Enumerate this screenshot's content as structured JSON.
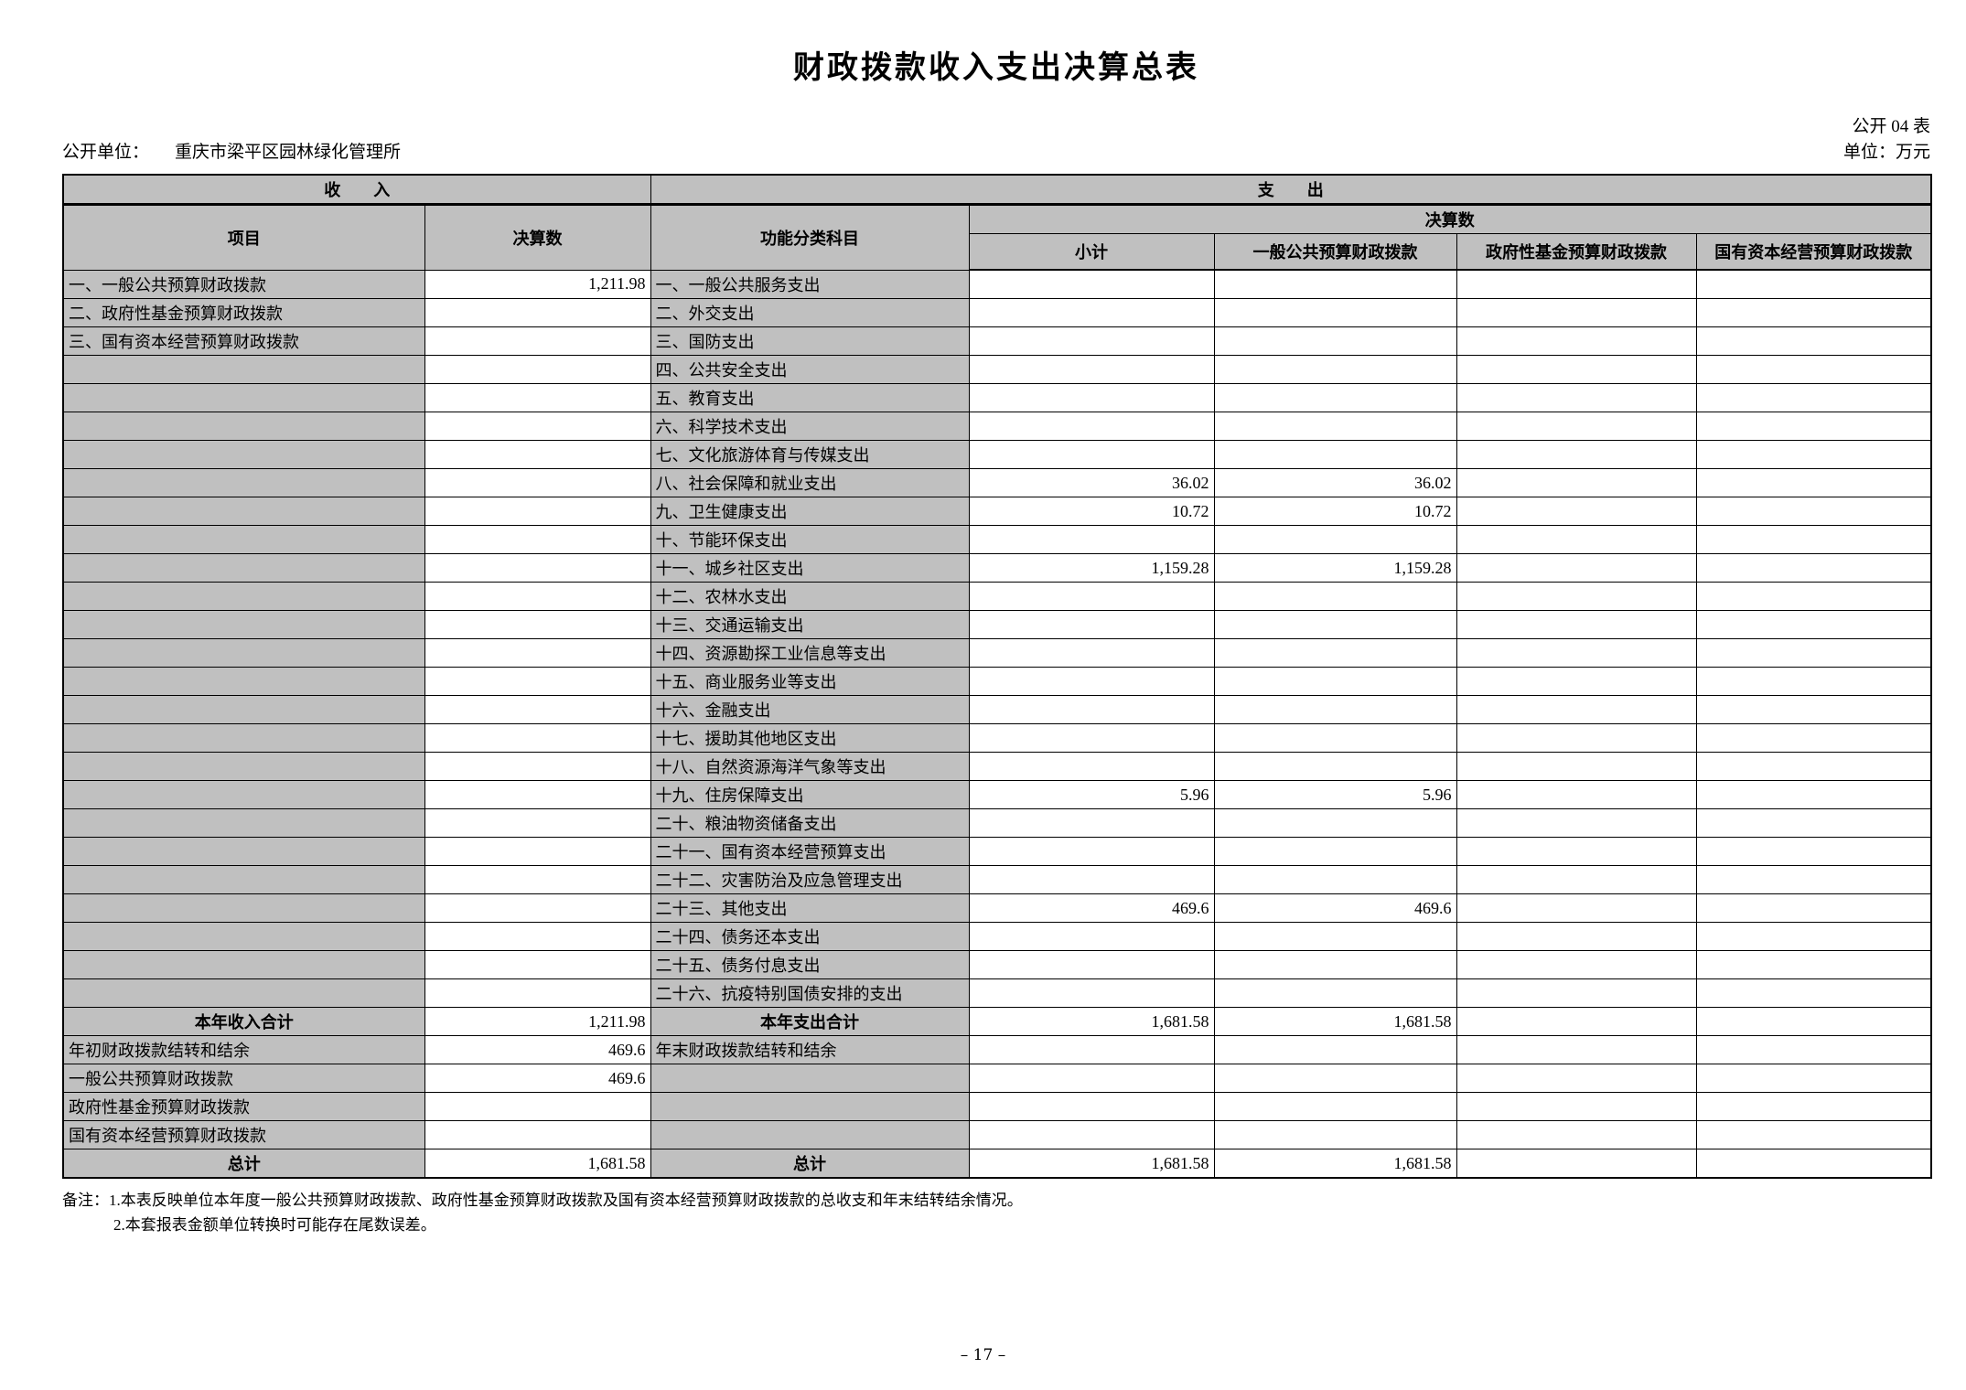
{
  "page": {
    "title": "财政拨款收入支出决算总表",
    "table_no": "公开 04 表",
    "unit_label": "公开单位：",
    "unit_name": "重庆市梁平区园林绿化管理所",
    "money_unit": "单位：万元",
    "page_number": "– 17 –",
    "note_line1": "备注：1.本表反映单位本年度一般公共预算财政拨款、政府性基金预算财政拨款及国有资本经营预算财政拨款的总收支和年末结转结余情况。",
    "note_line2": "2.本套报表金额单位转换时可能存在尾数误差。"
  },
  "table": {
    "header": {
      "income": "收　　入",
      "expenditure": "支　　出",
      "item": "项目",
      "income_final": "决算数",
      "func_class": "功能分类科目",
      "exp_final": "决算数",
      "subtotal": "小计",
      "general_public": "一般公共预算财政拨款",
      "gov_fund": "政府性基金预算财政拨款",
      "state_capital": "国有资本经营预算财政拨款"
    },
    "rows": [
      {
        "income_item": "一、一般公共预算财政拨款",
        "income_value": "1,211.98",
        "income_style": "",
        "exp_item": "一、一般公共服务支出",
        "exp_style": "",
        "subtotal": "",
        "general_public": "",
        "gov_fund": "",
        "state_capital": ""
      },
      {
        "income_item": "二、政府性基金预算财政拨款",
        "income_value": "",
        "income_style": "",
        "exp_item": "二、外交支出",
        "exp_style": "",
        "subtotal": "",
        "general_public": "",
        "gov_fund": "",
        "state_capital": ""
      },
      {
        "income_item": "三、国有资本经营预算财政拨款",
        "income_value": "",
        "income_style": "",
        "exp_item": "三、国防支出",
        "exp_style": "",
        "subtotal": "",
        "general_public": "",
        "gov_fund": "",
        "state_capital": ""
      },
      {
        "income_item": "",
        "income_value": "",
        "income_style": "",
        "exp_item": "四、公共安全支出",
        "exp_style": "",
        "subtotal": "",
        "general_public": "",
        "gov_fund": "",
        "state_capital": ""
      },
      {
        "income_item": "",
        "income_value": "",
        "income_style": "",
        "exp_item": "五、教育支出",
        "exp_style": "",
        "subtotal": "",
        "general_public": "",
        "gov_fund": "",
        "state_capital": ""
      },
      {
        "income_item": "",
        "income_value": "",
        "income_style": "",
        "exp_item": "六、科学技术支出",
        "exp_style": "",
        "subtotal": "",
        "general_public": "",
        "gov_fund": "",
        "state_capital": ""
      },
      {
        "income_item": "",
        "income_value": "",
        "income_style": "",
        "exp_item": "七、文化旅游体育与传媒支出",
        "exp_style": "",
        "subtotal": "",
        "general_public": "",
        "gov_fund": "",
        "state_capital": ""
      },
      {
        "income_item": "",
        "income_value": "",
        "income_style": "",
        "exp_item": "八、社会保障和就业支出",
        "exp_style": "",
        "subtotal": "36.02",
        "general_public": "36.02",
        "gov_fund": "",
        "state_capital": ""
      },
      {
        "income_item": "",
        "income_value": "",
        "income_style": "",
        "exp_item": "九、卫生健康支出",
        "exp_style": "",
        "subtotal": "10.72",
        "general_public": "10.72",
        "gov_fund": "",
        "state_capital": ""
      },
      {
        "income_item": "",
        "income_value": "",
        "income_style": "",
        "exp_item": "十、节能环保支出",
        "exp_style": "",
        "subtotal": "",
        "general_public": "",
        "gov_fund": "",
        "state_capital": ""
      },
      {
        "income_item": "",
        "income_value": "",
        "income_style": "",
        "exp_item": "十一、城乡社区支出",
        "exp_style": "",
        "subtotal": "1,159.28",
        "general_public": "1,159.28",
        "gov_fund": "",
        "state_capital": ""
      },
      {
        "income_item": "",
        "income_value": "",
        "income_style": "",
        "exp_item": "十二、农林水支出",
        "exp_style": "",
        "subtotal": "",
        "general_public": "",
        "gov_fund": "",
        "state_capital": ""
      },
      {
        "income_item": "",
        "income_value": "",
        "income_style": "",
        "exp_item": "十三、交通运输支出",
        "exp_style": "",
        "subtotal": "",
        "general_public": "",
        "gov_fund": "",
        "state_capital": ""
      },
      {
        "income_item": "",
        "income_value": "",
        "income_style": "",
        "exp_item": "十四、资源勘探工业信息等支出",
        "exp_style": "",
        "subtotal": "",
        "general_public": "",
        "gov_fund": "",
        "state_capital": ""
      },
      {
        "income_item": "",
        "income_value": "",
        "income_style": "",
        "exp_item": "十五、商业服务业等支出",
        "exp_style": "",
        "subtotal": "",
        "general_public": "",
        "gov_fund": "",
        "state_capital": ""
      },
      {
        "income_item": "",
        "income_value": "",
        "income_style": "",
        "exp_item": "十六、金融支出",
        "exp_style": "",
        "subtotal": "",
        "general_public": "",
        "gov_fund": "",
        "state_capital": ""
      },
      {
        "income_item": "",
        "income_value": "",
        "income_style": "",
        "exp_item": "十七、援助其他地区支出",
        "exp_style": "",
        "subtotal": "",
        "general_public": "",
        "gov_fund": "",
        "state_capital": ""
      },
      {
        "income_item": "",
        "income_value": "",
        "income_style": "",
        "exp_item": "十八、自然资源海洋气象等支出",
        "exp_style": "",
        "subtotal": "",
        "general_public": "",
        "gov_fund": "",
        "state_capital": ""
      },
      {
        "income_item": "",
        "income_value": "",
        "income_style": "",
        "exp_item": "十九、住房保障支出",
        "exp_style": "",
        "subtotal": "5.96",
        "general_public": "5.96",
        "gov_fund": "",
        "state_capital": ""
      },
      {
        "income_item": "",
        "income_value": "",
        "income_style": "",
        "exp_item": "二十、粮油物资储备支出",
        "exp_style": "",
        "subtotal": "",
        "general_public": "",
        "gov_fund": "",
        "state_capital": ""
      },
      {
        "income_item": "",
        "income_value": "",
        "income_style": "",
        "exp_item": "二十一、国有资本经营预算支出",
        "exp_style": "",
        "subtotal": "",
        "general_public": "",
        "gov_fund": "",
        "state_capital": ""
      },
      {
        "income_item": "",
        "income_value": "",
        "income_style": "",
        "exp_item": "二十二、灾害防治及应急管理支出",
        "exp_style": "",
        "subtotal": "",
        "general_public": "",
        "gov_fund": "",
        "state_capital": ""
      },
      {
        "income_item": "",
        "income_value": "",
        "income_style": "",
        "exp_item": "二十三、其他支出",
        "exp_style": "",
        "subtotal": "469.6",
        "general_public": "469.6",
        "gov_fund": "",
        "state_capital": ""
      },
      {
        "income_item": "",
        "income_value": "",
        "income_style": "",
        "exp_item": "二十四、债务还本支出",
        "exp_style": "",
        "subtotal": "",
        "general_public": "",
        "gov_fund": "",
        "state_capital": ""
      },
      {
        "income_item": "",
        "income_value": "",
        "income_style": "",
        "exp_item": "二十五、债务付息支出",
        "exp_style": "",
        "subtotal": "",
        "general_public": "",
        "gov_fund": "",
        "state_capital": ""
      },
      {
        "income_item": "",
        "income_value": "",
        "income_style": "",
        "exp_item": "二十六、抗疫特别国债安排的支出",
        "exp_style": "",
        "subtotal": "",
        "general_public": "",
        "gov_fund": "",
        "state_capital": ""
      },
      {
        "income_item": "本年收入合计",
        "income_value": "1,211.98",
        "income_style": "total",
        "exp_item": "本年支出合计",
        "exp_style": "total",
        "subtotal": "1,681.58",
        "general_public": "1,681.58",
        "gov_fund": "",
        "state_capital": ""
      },
      {
        "income_item": "年初财政拨款结转和结余",
        "income_value": "469.6",
        "income_style": "",
        "exp_item": "年末财政拨款结转和结余",
        "exp_style": "",
        "subtotal": "",
        "general_public": "",
        "gov_fund": "",
        "state_capital": ""
      },
      {
        "income_item": "一般公共预算财政拨款",
        "income_value": "469.6",
        "income_style": "indent",
        "exp_item": "",
        "exp_style": "",
        "subtotal": "",
        "general_public": "",
        "gov_fund": "",
        "state_capital": ""
      },
      {
        "income_item": "政府性基金预算财政拨款",
        "income_value": "",
        "income_style": "indent",
        "exp_item": "",
        "exp_style": "",
        "subtotal": "",
        "general_public": "",
        "gov_fund": "",
        "state_capital": ""
      },
      {
        "income_item": "国有资本经营预算财政拨款",
        "income_value": "",
        "income_style": "indent",
        "exp_item": "",
        "exp_style": "",
        "subtotal": "",
        "general_public": "",
        "gov_fund": "",
        "state_capital": ""
      },
      {
        "income_item": "总计",
        "income_value": "1,681.58",
        "income_style": "total",
        "exp_item": "总计",
        "exp_style": "total",
        "subtotal": "1,681.58",
        "general_public": "1,681.58",
        "gov_fund": "",
        "state_capital": ""
      }
    ]
  }
}
